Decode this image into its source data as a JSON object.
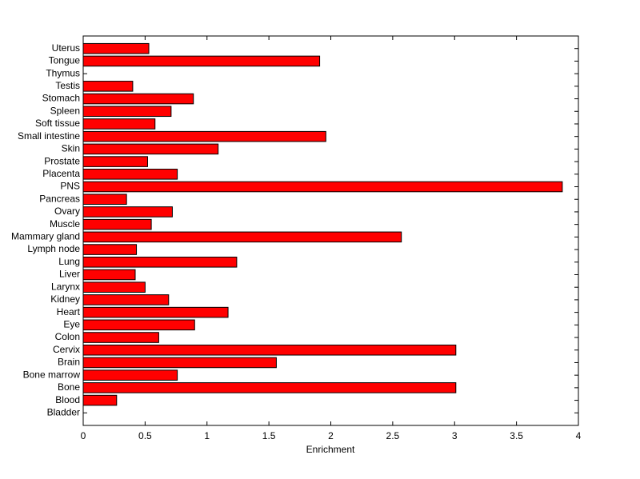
{
  "chart_data": {
    "type": "barh",
    "xlabel": "Enrichment",
    "categories": [
      "Bladder",
      "Blood",
      "Bone",
      "Bone marrow",
      "Brain",
      "Cervix",
      "Colon",
      "Eye",
      "Heart",
      "Kidney",
      "Larynx",
      "Liver",
      "Lung",
      "Lymph node",
      "Mammary gland",
      "Muscle",
      "Ovary",
      "Pancreas",
      "PNS",
      "Placenta",
      "Prostate",
      "Skin",
      "Small intestine",
      "Soft tissue",
      "Spleen",
      "Stomach",
      "Testis",
      "Thymus",
      "Tongue",
      "Uterus"
    ],
    "values": [
      0,
      0.27,
      3.01,
      0.76,
      1.56,
      3.01,
      0.61,
      0.9,
      1.17,
      0.69,
      0.5,
      0.42,
      1.24,
      0.43,
      2.57,
      0.55,
      0.72,
      0.35,
      3.87,
      0.76,
      0.52,
      1.09,
      1.96,
      0.58,
      0.71,
      0.89,
      0.4,
      0,
      1.91,
      0.53
    ],
    "color": "#ff0000",
    "xlim": [
      0,
      4
    ],
    "xticks": [
      0,
      0.5,
      1,
      1.5,
      2,
      2.5,
      3,
      3.5,
      4
    ]
  }
}
